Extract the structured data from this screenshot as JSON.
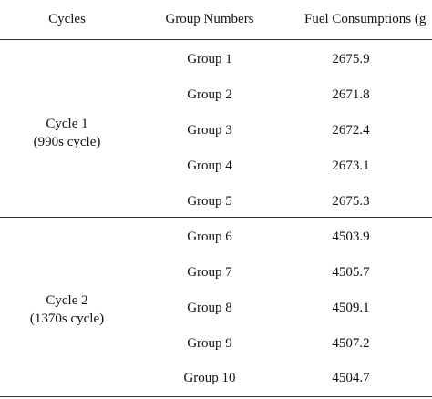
{
  "header": {
    "cycles": "Cycles",
    "group_numbers": "Group Numbers",
    "fuel_consumptions": "Fuel Consumptions (g"
  },
  "cycles": [
    {
      "label_line1": "Cycle 1",
      "label_line2": "(990s cycle)",
      "rows": [
        {
          "group": "Group 1",
          "fuel": "2675.9"
        },
        {
          "group": "Group 2",
          "fuel": "2671.8"
        },
        {
          "group": "Group 3",
          "fuel": "2672.4"
        },
        {
          "group": "Group 4",
          "fuel": "2673.1"
        },
        {
          "group": "Group 5",
          "fuel": "2675.3"
        }
      ]
    },
    {
      "label_line1": "Cycle 2",
      "label_line2": "(1370s cycle)",
      "rows": [
        {
          "group": "Group 6",
          "fuel": "4503.9"
        },
        {
          "group": "Group 7",
          "fuel": "4505.7"
        },
        {
          "group": "Group 8",
          "fuel": "4509.1"
        },
        {
          "group": "Group 9",
          "fuel": "4507.2"
        },
        {
          "group": "Group 10",
          "fuel": "4504.7"
        }
      ]
    }
  ]
}
